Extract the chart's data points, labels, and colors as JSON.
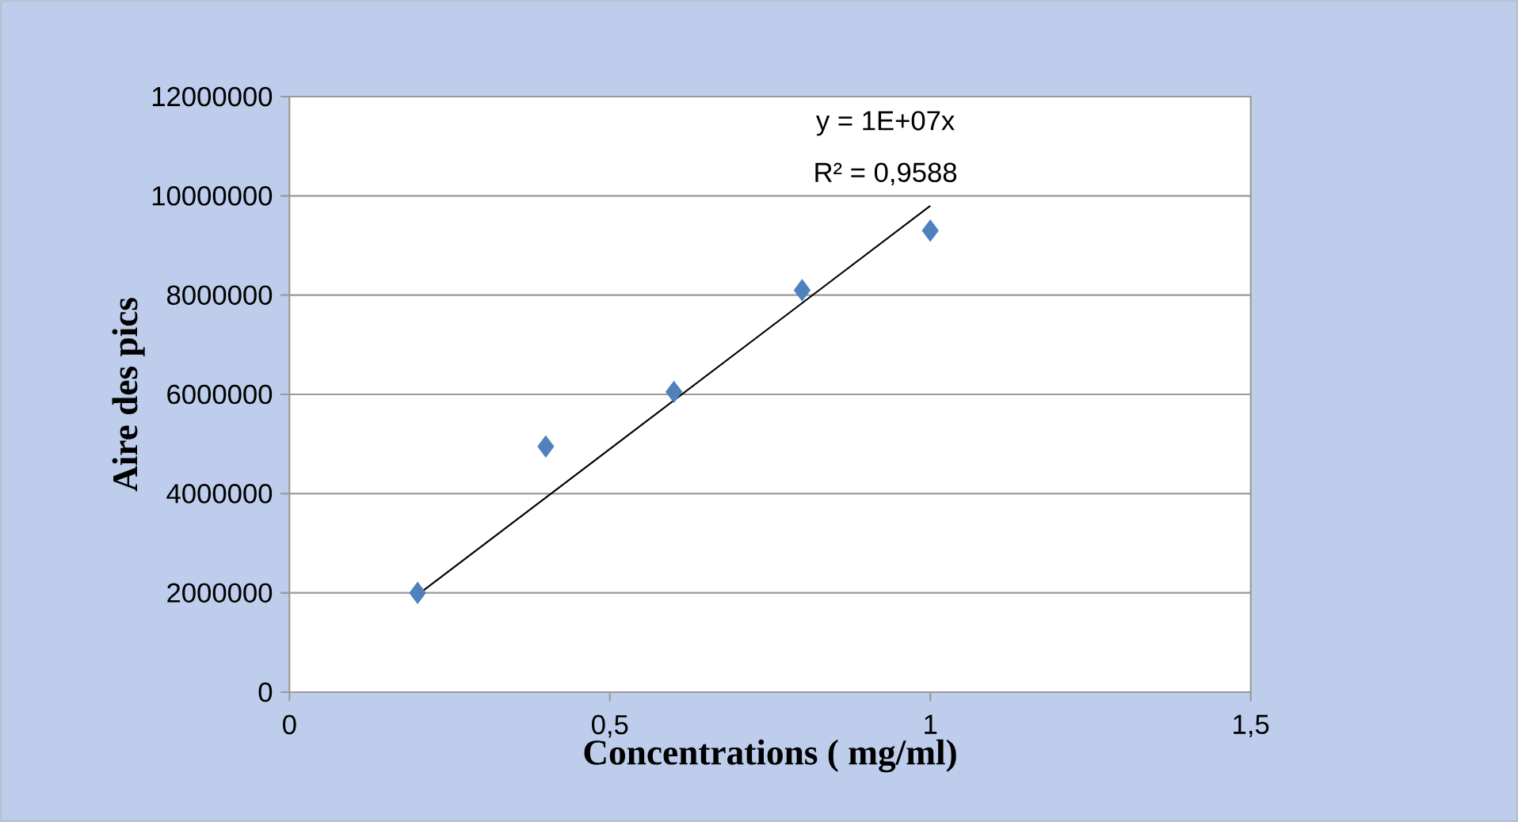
{
  "chart_data": {
    "type": "scatter",
    "xlabel": "Concentrations  ( mg/ml)",
    "ylabel": "Aire des pics",
    "annotations": [
      "y = 1E+07x",
      "R² = 0,9588"
    ],
    "series": [
      {
        "color": "#4f81bd",
        "marker": "diamond",
        "x": [
          0.2,
          0.4,
          0.6,
          0.8,
          1.0
        ],
        "values": [
          2000000,
          4950000,
          6050000,
          8100000,
          9300000
        ]
      },
      {
        "type": "line",
        "color": "#000000",
        "marker": "none",
        "x": [
          0.2,
          1.0
        ],
        "values": [
          1960000,
          9800000
        ]
      }
    ],
    "xlim": [
      0,
      1.5
    ],
    "ylim": [
      0,
      12000000
    ],
    "xticks": [
      0,
      {
        "value": 0.5,
        "label": "0,5"
      },
      1,
      {
        "value": 1.5,
        "label": "1,5"
      }
    ],
    "yticks": [
      0,
      2000000,
      4000000,
      6000000,
      8000000,
      10000000,
      12000000
    ],
    "grid": "y"
  }
}
